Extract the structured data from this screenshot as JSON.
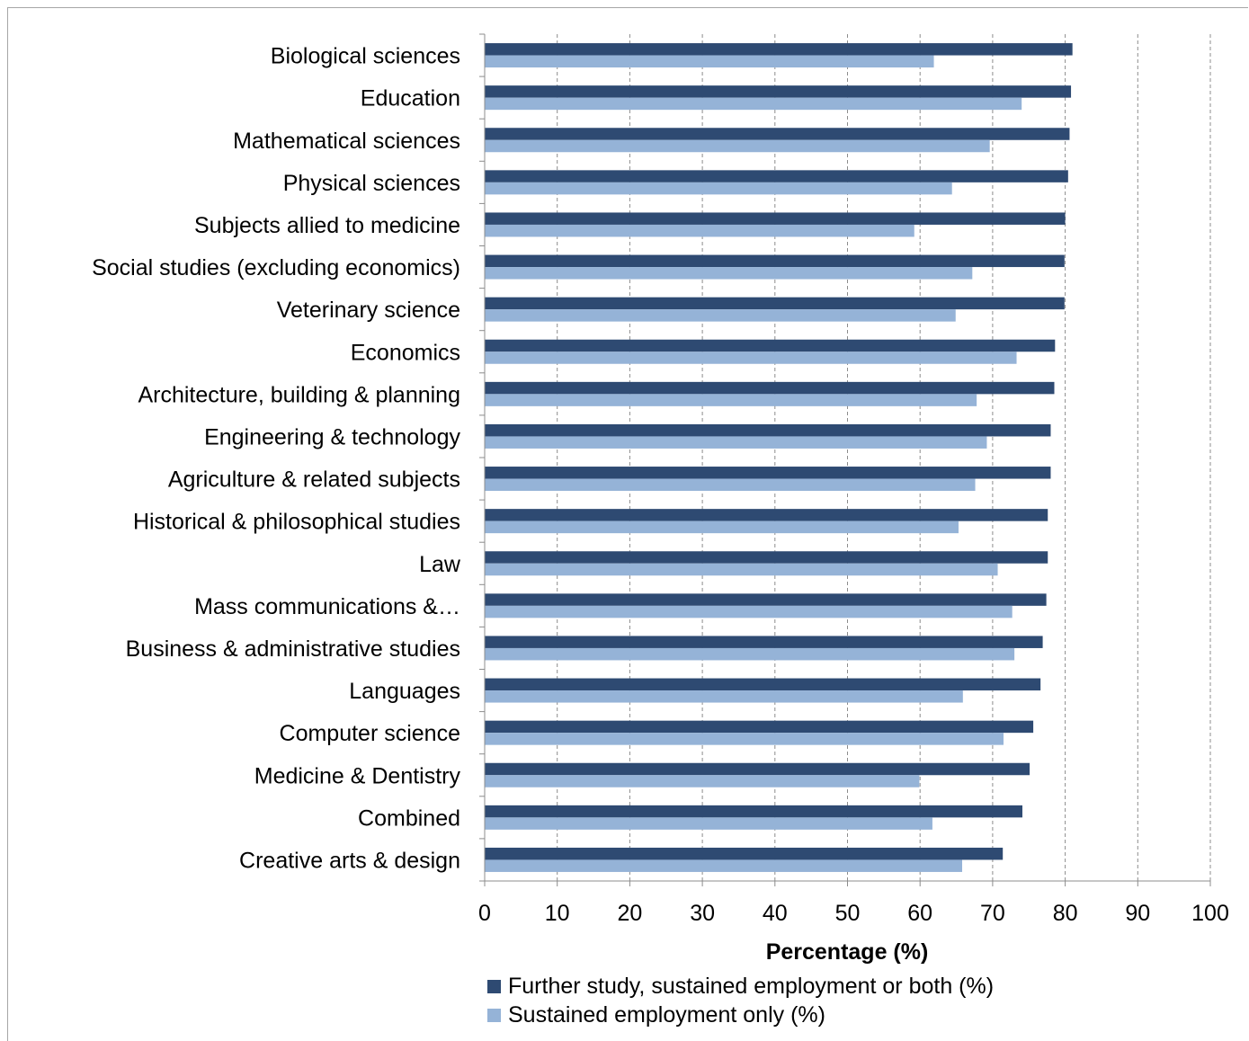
{
  "chart_data": {
    "type": "bar",
    "orientation": "horizontal",
    "title": "",
    "xlabel": "Percentage (%)",
    "ylabel": "",
    "xlim": [
      0,
      100
    ],
    "xticks": [
      0,
      10,
      20,
      30,
      40,
      50,
      60,
      70,
      80,
      90,
      100
    ],
    "grid": "vertical dashed",
    "legend_position": "bottom",
    "categories": [
      "Biological sciences",
      "Education",
      "Mathematical sciences",
      "Physical sciences",
      "Subjects allied to medicine",
      "Social studies (excluding economics)",
      "Veterinary science",
      "Economics",
      "Architecture, building & planning",
      "Engineering & technology",
      "Agriculture & related subjects",
      "Historical & philosophical studies",
      "Law",
      "Mass communications &…",
      "Business & administrative studies",
      "Languages",
      "Computer science",
      "Medicine & Dentistry",
      "Combined",
      "Creative arts & design"
    ],
    "series": [
      {
        "name": "Further study, sustained employment or both (%)",
        "color": "#2e4a72",
        "values": [
          81.0,
          80.8,
          80.6,
          80.4,
          80.0,
          79.9,
          79.9,
          78.6,
          78.5,
          78.0,
          78.0,
          77.6,
          77.6,
          77.4,
          76.9,
          76.6,
          75.6,
          75.1,
          74.1,
          71.4
        ]
      },
      {
        "name": "Sustained employment only (%)",
        "color": "#95b3d7",
        "values": [
          61.9,
          74.0,
          69.6,
          64.4,
          59.2,
          67.2,
          64.9,
          73.3,
          67.8,
          69.2,
          67.6,
          65.3,
          70.7,
          72.7,
          73.0,
          65.9,
          71.5,
          59.9,
          61.7,
          65.8
        ]
      }
    ]
  }
}
